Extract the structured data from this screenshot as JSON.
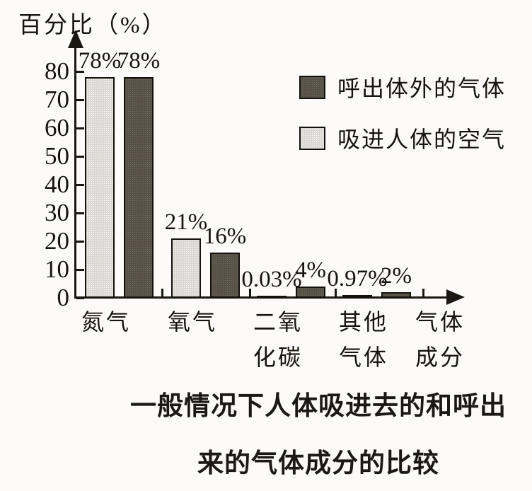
{
  "chart_data": {
    "type": "bar",
    "title_lines": [
      "一般情况下人体吸进去的和呼出",
      "来的气体成分的比较"
    ],
    "ylabel": "百分比（%）",
    "xlabel_lines": [
      "气体",
      "成分"
    ],
    "categories": [
      [
        "氮气"
      ],
      [
        "氧气"
      ],
      [
        "二氧",
        "化碳"
      ],
      [
        "其他",
        "气体"
      ]
    ],
    "category_keys": [
      "nitrogen",
      "oxygen",
      "carbon-dioxide",
      "other-gases"
    ],
    "series": [
      {
        "name": "吸进人体的空气",
        "key": "inhaled",
        "values": [
          78,
          21,
          0.03,
          0.97
        ],
        "labels": [
          "78%",
          "21%",
          "0.03%",
          "0.97%"
        ]
      },
      {
        "name": "呼出体外的气体",
        "key": "exhaled",
        "values": [
          78,
          16,
          4,
          2
        ],
        "labels": [
          "78%",
          "16%",
          "4%",
          "2%"
        ]
      }
    ],
    "legend": [
      {
        "name": "呼出体外的气体",
        "swatch": "exhaled"
      },
      {
        "name": "吸进人体的空气",
        "swatch": "inhaled"
      }
    ],
    "yticks": [
      0,
      10,
      20,
      30,
      40,
      50,
      60,
      70,
      80
    ],
    "ylim": [
      0,
      80
    ],
    "grid": false,
    "legend_position": "upper-right",
    "colors": {
      "exhaled": "#575146",
      "inhaled": "#dbd9d4",
      "axis": "#1a1712"
    }
  }
}
